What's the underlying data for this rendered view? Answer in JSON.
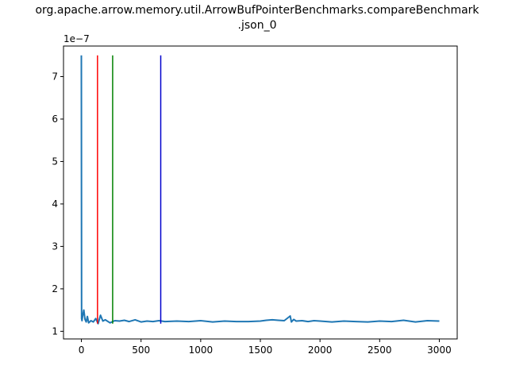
{
  "chart_data": {
    "type": "line",
    "title_line1": "org.apache.arrow.memory.util.ArrowBufPointerBenchmarks.compareBenchmark",
    "title_line2": ".json_0",
    "xlabel": "",
    "ylabel": "",
    "y_multiplier_label": "1e−7",
    "xlim": [
      -150,
      3150
    ],
    "ylim": [
      0.82,
      7.72
    ],
    "y_scale_note": "values shown in units of 1e-7",
    "xticks": [
      0,
      500,
      1000,
      1500,
      2000,
      2500,
      3000
    ],
    "xtick_labels": [
      "0",
      "500",
      "1000",
      "1500",
      "2000",
      "2500",
      "3000"
    ],
    "yticks": [
      1,
      2,
      3,
      4,
      5,
      6,
      7
    ],
    "ytick_labels": [
      "1",
      "2",
      "3",
      "4",
      "5",
      "6",
      "7"
    ],
    "grid": false,
    "series": [
      {
        "color": "#1f77b4",
        "x": [
          0,
          2,
          5,
          10,
          20,
          30,
          40,
          50,
          60,
          80,
          100,
          120,
          140,
          160,
          180,
          200,
          240,
          280,
          320,
          360,
          400,
          450,
          500,
          550,
          600,
          650,
          700,
          800,
          900,
          1000,
          1100,
          1200,
          1300,
          1400,
          1500,
          1550,
          1600,
          1650,
          1700,
          1750,
          1760,
          1780,
          1800,
          1850,
          1900,
          1950,
          2000,
          2100,
          2200,
          2300,
          2400,
          2500,
          2600,
          2700,
          2800,
          2900,
          3000
        ],
        "y": [
          7.5,
          1.3,
          1.25,
          1.35,
          1.5,
          1.28,
          1.22,
          1.35,
          1.2,
          1.25,
          1.22,
          1.3,
          1.18,
          1.38,
          1.24,
          1.27,
          1.2,
          1.25,
          1.24,
          1.26,
          1.23,
          1.27,
          1.22,
          1.24,
          1.23,
          1.25,
          1.23,
          1.24,
          1.23,
          1.25,
          1.22,
          1.24,
          1.23,
          1.23,
          1.24,
          1.26,
          1.27,
          1.26,
          1.25,
          1.36,
          1.22,
          1.28,
          1.24,
          1.25,
          1.23,
          1.25,
          1.24,
          1.22,
          1.24,
          1.23,
          1.22,
          1.24,
          1.23,
          1.26,
          1.22,
          1.25,
          1.24
        ]
      }
    ],
    "vlines": [
      {
        "x": 135,
        "ymin": 1.18,
        "ymax": 7.5,
        "color": "#ff0000"
      },
      {
        "x": 262,
        "ymin": 1.18,
        "ymax": 7.5,
        "color": "#008000"
      },
      {
        "x": 665,
        "ymin": 1.18,
        "ymax": 7.5,
        "color": "#0000cc"
      }
    ]
  }
}
